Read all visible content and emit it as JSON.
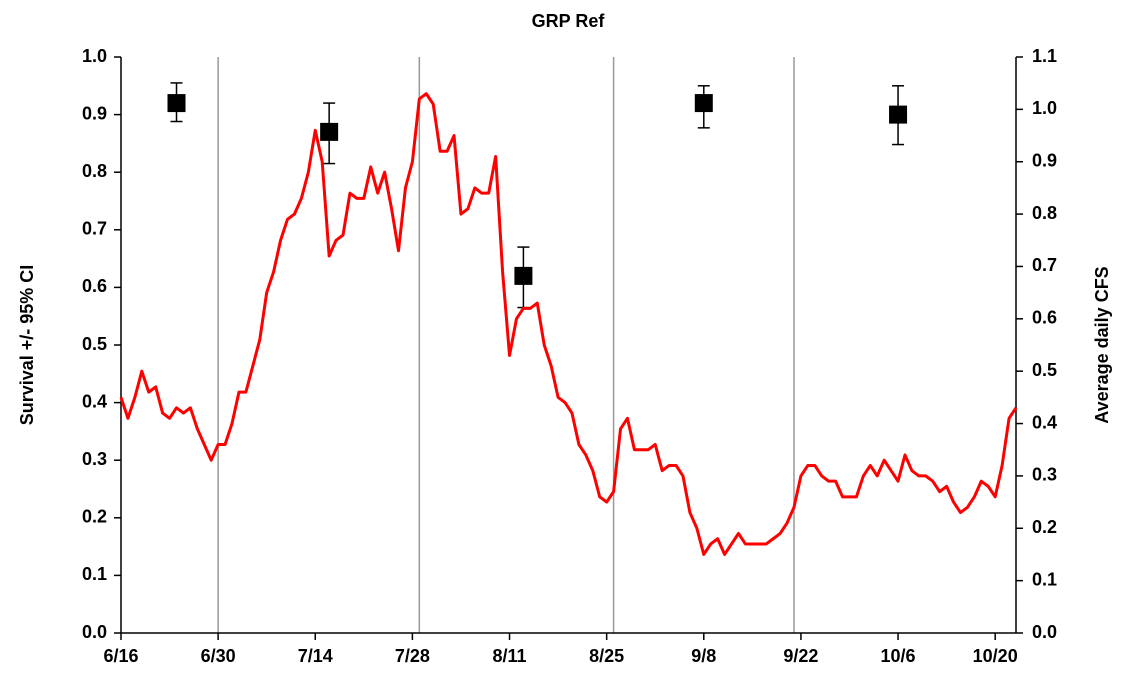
{
  "chart_data": {
    "type": "line",
    "title": "GRP Ref",
    "ylabel": "Survival +/- 95% CI",
    "y2label": "Average daily CFS",
    "xlim": [
      "6/16",
      "10/23"
    ],
    "xticks": [
      "6/16",
      "6/30",
      "7/14",
      "7/28",
      "8/11",
      "8/25",
      "9/8",
      "9/22",
      "10/6",
      "10/20"
    ],
    "vlines": [
      "6/30",
      "7/29",
      "8/26",
      "9/21"
    ],
    "ylim": [
      0,
      1
    ],
    "yticks": [
      {
        "value": 0,
        "label": "0.0"
      },
      0.1,
      0.2,
      0.3,
      0.4,
      0.5,
      0.6,
      0.7,
      0.8,
      0.9,
      {
        "value": 1,
        "label": "1.0"
      }
    ],
    "y2lim": [
      0,
      1.1
    ],
    "y2ticks": [
      {
        "value": 0,
        "label": "0.0"
      },
      0.1,
      0.2,
      0.3,
      0.4,
      0.5,
      0.6,
      0.7,
      0.8,
      0.9,
      {
        "value": 1,
        "label": "1.0"
      },
      1.1
    ],
    "series": [
      {
        "type": "scatter",
        "color": "#000000",
        "x": [
          "6/24",
          "7/16",
          "8/13",
          "9/8",
          "10/6"
        ],
        "values": [
          0.92,
          0.87,
          0.62,
          0.92,
          0.9
        ],
        "ci_low": [
          0.888,
          0.815,
          0.565,
          0.877,
          0.848
        ],
        "ci_high": [
          0.955,
          0.92,
          0.67,
          0.95,
          0.95
        ]
      },
      {
        "type": "line",
        "color": "#ff0000",
        "axis": "y2",
        "x": [
          "6/16",
          "6/17",
          "6/18",
          "6/19",
          "6/20",
          "6/21",
          "6/22",
          "6/23",
          "6/24",
          "6/25",
          "6/26",
          "6/27",
          "6/28",
          "6/29",
          "6/30",
          "7/1",
          "7/2",
          "7/3",
          "7/4",
          "7/5",
          "7/6",
          "7/7",
          "7/8",
          "7/9",
          "7/10",
          "7/11",
          "7/12",
          "7/13",
          "7/14",
          "7/15",
          "7/16",
          "7/17",
          "7/18",
          "7/19",
          "7/20",
          "7/21",
          "7/22",
          "7/23",
          "7/24",
          "7/25",
          "7/26",
          "7/27",
          "7/28",
          "7/29",
          "7/30",
          "7/31",
          "8/1",
          "8/2",
          "8/3",
          "8/4",
          "8/5",
          "8/6",
          "8/7",
          "8/8",
          "8/9",
          "8/10",
          "8/11",
          "8/12",
          "8/13",
          "8/14",
          "8/15",
          "8/16",
          "8/17",
          "8/18",
          "8/19",
          "8/20",
          "8/21",
          "8/22",
          "8/23",
          "8/24",
          "8/25",
          "8/26",
          "8/27",
          "8/28",
          "8/29",
          "8/30",
          "8/31",
          "9/1",
          "9/2",
          "9/3",
          "9/4",
          "9/5",
          "9/6",
          "9/7",
          "9/8",
          "9/9",
          "9/10",
          "9/11",
          "9/12",
          "9/13",
          "9/14",
          "9/15",
          "9/16",
          "9/17",
          "9/18",
          "9/19",
          "9/20",
          "9/21",
          "9/22",
          "9/23",
          "9/24",
          "9/25",
          "9/26",
          "9/27",
          "9/28",
          "9/29",
          "9/30",
          "10/1",
          "10/2",
          "10/3",
          "10/4",
          "10/5",
          "10/6",
          "10/7",
          "10/8",
          "10/9",
          "10/10",
          "10/11",
          "10/12",
          "10/13",
          "10/14",
          "10/15",
          "10/16",
          "10/17",
          "10/18",
          "10/19",
          "10/20",
          "10/21",
          "10/22",
          "10/23"
        ],
        "values": [
          0.45,
          0.41,
          0.45,
          0.5,
          0.46,
          0.47,
          0.42,
          0.41,
          0.43,
          0.42,
          0.43,
          0.39,
          0.36,
          0.33,
          0.36,
          0.36,
          0.4,
          0.46,
          0.46,
          0.51,
          0.56,
          0.65,
          0.69,
          0.75,
          0.79,
          0.8,
          0.83,
          0.88,
          0.96,
          0.9,
          0.72,
          0.75,
          0.76,
          0.84,
          0.83,
          0.83,
          0.89,
          0.84,
          0.88,
          0.81,
          0.73,
          0.85,
          0.9,
          1.02,
          1.03,
          1.01,
          0.92,
          0.92,
          0.95,
          0.8,
          0.81,
          0.85,
          0.84,
          0.84,
          0.91,
          0.69,
          0.53,
          0.6,
          0.62,
          0.62,
          0.63,
          0.55,
          0.51,
          0.45,
          0.44,
          0.42,
          0.36,
          0.34,
          0.31,
          0.26,
          0.25,
          0.27,
          0.39,
          0.41,
          0.35,
          0.35,
          0.35,
          0.36,
          0.31,
          0.32,
          0.32,
          0.3,
          0.23,
          0.2,
          0.15,
          0.17,
          0.18,
          0.15,
          0.17,
          0.19,
          0.17,
          0.17,
          0.17,
          0.17,
          0.18,
          0.19,
          0.21,
          0.24,
          0.3,
          0.32,
          0.32,
          0.3,
          0.29,
          0.29,
          0.26,
          0.26,
          0.26,
          0.3,
          0.32,
          0.3,
          0.33,
          0.31,
          0.29,
          0.34,
          0.31,
          0.3,
          0.3,
          0.29,
          0.27,
          0.28,
          0.25,
          0.23,
          0.24,
          0.26,
          0.29,
          0.28,
          0.26,
          0.32,
          0.41,
          0.43
        ]
      }
    ]
  }
}
